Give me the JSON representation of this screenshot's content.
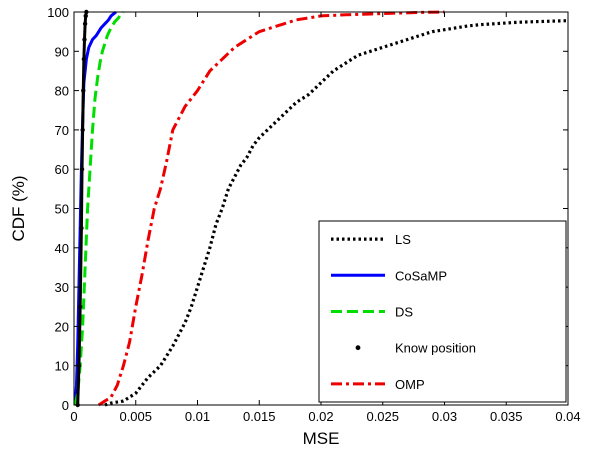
{
  "chart_data": {
    "type": "line",
    "title": "",
    "xlabel": "MSE",
    "ylabel": "CDF  (%)",
    "xlim": [
      0,
      0.04
    ],
    "ylim": [
      0,
      100
    ],
    "x_ticks": [
      0,
      0.005,
      0.01,
      0.015,
      0.02,
      0.025,
      0.03,
      0.035,
      0.04
    ],
    "x_tick_labels": [
      "0",
      "0.005",
      "0.01",
      "0.015",
      "0.02",
      "0.025",
      "0.03",
      "0.035",
      "0.04"
    ],
    "y_ticks": [
      0,
      10,
      20,
      30,
      40,
      50,
      60,
      70,
      80,
      90,
      100
    ],
    "y_tick_labels": [
      "0",
      "10",
      "20",
      "30",
      "40",
      "50",
      "60",
      "70",
      "80",
      "90",
      "100"
    ],
    "grid": false,
    "legend_position": "bottom-right",
    "series": [
      {
        "name": "LS",
        "color": "#000000",
        "style": "dotted",
        "x": [
          0.0025,
          0.003,
          0.004,
          0.005,
          0.006,
          0.007,
          0.008,
          0.009,
          0.0095,
          0.01,
          0.0105,
          0.011,
          0.0115,
          0.012,
          0.0125,
          0.013,
          0.0135,
          0.014,
          0.0145,
          0.015,
          0.016,
          0.017,
          0.018,
          0.019,
          0.02,
          0.021,
          0.022,
          0.023,
          0.024,
          0.025,
          0.026,
          0.027,
          0.028,
          0.029,
          0.03,
          0.031,
          0.032,
          0.033,
          0.034,
          0.035,
          0.036,
          0.037,
          0.038,
          0.039,
          0.04
        ],
        "y": [
          0,
          0.5,
          1,
          3,
          7,
          10,
          15,
          21,
          25,
          30,
          35,
          40,
          46,
          50,
          55,
          58,
          61,
          63,
          66,
          68,
          71,
          74,
          77,
          79,
          82,
          85,
          87,
          89,
          90,
          91,
          92,
          93,
          94,
          95,
          95.5,
          96,
          96.5,
          96.8,
          97,
          97.2,
          97.4,
          97.5,
          97.6,
          97.7,
          97.8
        ]
      },
      {
        "name": "CoSaMP",
        "color": "#0000ff",
        "style": "solid",
        "x": [
          0.0001,
          0.0002,
          0.0003,
          0.0004,
          0.0005,
          0.0006,
          0.0007,
          0.0008,
          0.001,
          0.0012,
          0.0015,
          0.0018,
          0.002,
          0.0022,
          0.0025,
          0.0028,
          0.003,
          0.0032,
          0.0034
        ],
        "y": [
          0,
          5,
          15,
          30,
          45,
          60,
          72,
          82,
          88,
          91,
          93,
          94,
          95,
          96,
          97,
          98,
          99,
          99.5,
          100
        ]
      },
      {
        "name": "DS",
        "color": "#00dd00",
        "style": "dashed",
        "x": [
          0.0001,
          0.0003,
          0.0005,
          0.0007,
          0.0009,
          0.0011,
          0.0013,
          0.0015,
          0.0017,
          0.0019,
          0.0021,
          0.0023,
          0.0025,
          0.0027,
          0.003,
          0.0033,
          0.0036,
          0.0038,
          0.004
        ],
        "y": [
          0,
          3,
          10,
          20,
          35,
          50,
          60,
          70,
          78,
          83,
          87,
          90,
          92,
          94,
          96,
          97.5,
          98.5,
          99.5,
          100
        ]
      },
      {
        "name": "Know position",
        "color": "#000000",
        "style": "dots",
        "x": [
          0.0003,
          0.0004,
          0.0005,
          0.0006,
          0.00065,
          0.0007,
          0.00075,
          0.0008,
          0.00085,
          0.0009,
          0.00095,
          0.001
        ],
        "y": [
          0,
          10,
          25,
          45,
          60,
          70,
          80,
          88,
          93,
          97,
          99,
          100
        ]
      },
      {
        "name": "OMP",
        "color": "#ee0000",
        "style": "dashdot",
        "x": [
          0.002,
          0.0025,
          0.003,
          0.0035,
          0.004,
          0.0045,
          0.005,
          0.0055,
          0.006,
          0.0065,
          0.007,
          0.0075,
          0.008,
          0.0085,
          0.009,
          0.0095,
          0.01,
          0.011,
          0.012,
          0.013,
          0.014,
          0.015,
          0.016,
          0.017,
          0.018,
          0.019,
          0.02,
          0.022,
          0.024,
          0.026,
          0.028,
          0.03
        ],
        "y": [
          0,
          1,
          2,
          5,
          10,
          16,
          25,
          33,
          42,
          50,
          55,
          62,
          70,
          73,
          76,
          78,
          80,
          85,
          88,
          91,
          93,
          95,
          96,
          97,
          98,
          98.5,
          99,
          99.3,
          99.5,
          99.7,
          99.9,
          100
        ]
      }
    ]
  }
}
